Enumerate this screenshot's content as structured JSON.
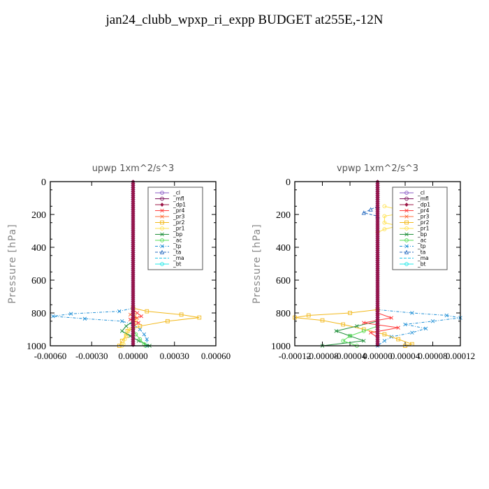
{
  "figure_title": "jan24_clubb_wpxp_ri_expp  BUDGET at255E,-12N",
  "legend_entries": [
    {
      "name": "_cl",
      "color": "#8a5cc6",
      "dash": "",
      "marker": "circle"
    },
    {
      "name": "_mfl",
      "color": "#7a0f5a",
      "dash": "",
      "marker": "circle"
    },
    {
      "name": "_dp1",
      "color": "#9b1546",
      "dash": "",
      "marker": "diamond"
    },
    {
      "name": "_pr4",
      "color": "#ff3b3b",
      "dash": "",
      "marker": "x"
    },
    {
      "name": "_pr3",
      "color": "#ff6f3c",
      "dash": "",
      "marker": "x"
    },
    {
      "name": "_pr2",
      "color": "#f2b81a",
      "dash": "",
      "marker": "square"
    },
    {
      "name": "_pr1",
      "color": "#ffe14d",
      "dash": "",
      "marker": "circle"
    },
    {
      "name": "_bp",
      "color": "#1f8f3a",
      "dash": "",
      "marker": "x"
    },
    {
      "name": "_ac",
      "color": "#55dd55",
      "dash": "",
      "marker": "circle"
    },
    {
      "name": "_tp",
      "color": "#1f8fd6",
      "dash": "4,2,1,2",
      "marker": "x"
    },
    {
      "name": "_ta",
      "color": "#2c6fc2",
      "dash": "4,2",
      "marker": "triangle"
    },
    {
      "name": "_ma",
      "color": "#22c2e8",
      "dash": "4,2",
      "marker": "none"
    },
    {
      "name": "_bt",
      "color": "#22e8e8",
      "dash": "",
      "marker": "circle"
    }
  ],
  "chart_data": [
    {
      "type": "line",
      "title": "upwp   1xm^2/s^3",
      "ylabel": "Pressure [hPa]",
      "xlim": [
        -0.0006,
        0.0006
      ],
      "ylim": [
        1000,
        0
      ],
      "x_ticks": [
        "-0.00060",
        "-0.00030",
        "0.00000",
        "0.00030",
        "0.00060"
      ],
      "x_tick_values": [
        -0.0006,
        -0.0003,
        0,
        0.0003,
        0.0006
      ],
      "y_ticks": [
        0,
        200,
        400,
        600,
        800,
        1000
      ],
      "series": [
        {
          "name": "_tp",
          "p": [
            770,
            790,
            805,
            820,
            835,
            850,
            870,
            900,
            930,
            960,
            1000
          ],
          "v": [
            0,
            -0.0001,
            -0.00045,
            -0.00058,
            -0.00035,
            -8e-05,
            0.0,
            5e-05,
            8e-05,
            0.0001,
            0.0001
          ]
        },
        {
          "name": "_pr2",
          "p": [
            770,
            790,
            810,
            828,
            850,
            880,
            910,
            940,
            970,
            1000
          ],
          "v": [
            0,
            0.0001,
            0.00035,
            0.00048,
            0.00025,
            5e-05,
            -4e-05,
            -5e-05,
            -8e-05,
            -0.0001
          ]
        },
        {
          "name": "_pr1",
          "p": [
            780,
            810,
            840,
            870,
            900,
            930,
            960,
            990,
            1000
          ],
          "v": [
            0,
            1e-05,
            2e-05,
            1e-05,
            -3e-05,
            -5e-05,
            -6e-05,
            -7e-05,
            -8e-05
          ]
        },
        {
          "name": "_bp",
          "p": [
            850,
            880,
            910,
            940,
            970,
            1000
          ],
          "v": [
            0,
            -5e-05,
            -8e-05,
            -2e-05,
            4e-05,
            0.00012
          ]
        },
        {
          "name": "_ac",
          "p": [
            900,
            930,
            960,
            990,
            1000
          ],
          "v": [
            0,
            2e-05,
            5e-05,
            8e-05,
            9e-05
          ]
        },
        {
          "name": "_pr4",
          "p": [
            780,
            800,
            820,
            840,
            860,
            880
          ],
          "v": [
            0,
            3e-05,
            6e-05,
            -2e-05,
            4e-05,
            0
          ]
        },
        {
          "name": "_pr3",
          "p": [
            790,
            810,
            830,
            850
          ],
          "v": [
            0,
            -2e-05,
            3e-05,
            0
          ]
        }
      ]
    },
    {
      "type": "line",
      "title": "vpwp   1xm^2/s^3",
      "ylabel": "Pressure [hPa]",
      "xlim": [
        -0.00012,
        0.00012
      ],
      "ylim": [
        1000,
        0
      ],
      "x_ticks": [
        "-0.00012",
        "-0.00008",
        "-0.00004",
        "0.00000",
        "0.00004",
        "0.00008",
        "0.00012"
      ],
      "x_tick_values": [
        -0.00012,
        -8e-05,
        -4e-05,
        0,
        4e-05,
        8e-05,
        0.00012
      ],
      "y_ticks": [
        0,
        200,
        400,
        600,
        800,
        1000
      ],
      "series": [
        {
          "name": "_tp",
          "p": [
            780,
            800,
            815,
            830,
            850,
            870,
            895,
            920,
            945,
            970,
            1000
          ],
          "v": [
            0,
            5e-05,
            0.0001,
            0.00012,
            8e-05,
            4e-05,
            7e-05,
            5e-05,
            2e-05,
            1e-05,
            0
          ]
        },
        {
          "name": "_pr2",
          "p": [
            780,
            800,
            815,
            828,
            845,
            870,
            900,
            930,
            960,
            990,
            1000
          ],
          "v": [
            0,
            -4e-05,
            -0.0001,
            -0.00012,
            -8e-05,
            -5e-05,
            -2e-05,
            1e-05,
            3e-05,
            5e-05,
            4e-05
          ]
        },
        {
          "name": "_pr1",
          "p": [
            150,
            170,
            190,
            210,
            250,
            270,
            290,
            310
          ],
          "v": [
            1e-05,
            3e-05,
            4e-05,
            1e-05,
            1e-05,
            3e-05,
            1e-05,
            0.0
          ]
        },
        {
          "name": "_bp",
          "p": [
            850,
            880,
            910,
            940,
            970,
            1000
          ],
          "v": [
            0,
            -3e-05,
            -6e-05,
            -4e-05,
            -2e-05,
            -8e-05
          ]
        },
        {
          "name": "_ac",
          "p": [
            880,
            910,
            940,
            970,
            1000
          ],
          "v": [
            0,
            -2e-05,
            -4e-05,
            -5e-05,
            -3e-05
          ]
        },
        {
          "name": "_pr4",
          "p": [
            800,
            830,
            860,
            890,
            920,
            950
          ],
          "v": [
            0,
            2e-05,
            -2e-05,
            3e-05,
            -1e-05,
            0
          ]
        },
        {
          "name": "_ta",
          "p": [
            150,
            170,
            190,
            210
          ],
          "v": [
            0,
            -1e-05,
            -2e-05,
            0
          ]
        }
      ]
    }
  ]
}
